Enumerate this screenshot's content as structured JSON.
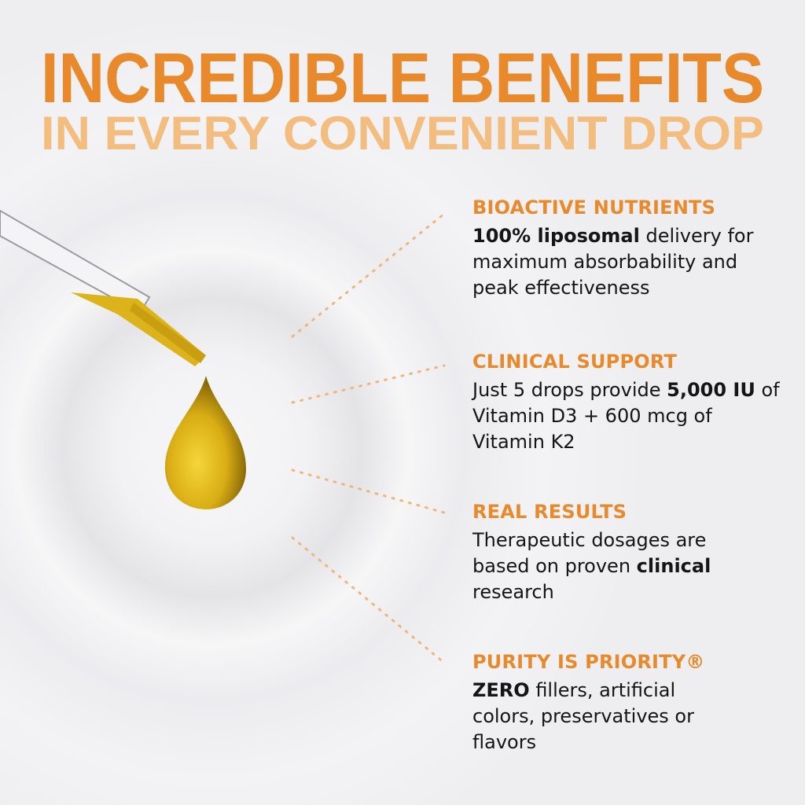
{
  "headline": {
    "line1": "INCREDIBLE BENEFITS",
    "line2": "IN EVERY CONVENIENT DROP"
  },
  "colors": {
    "accent": "#e8892c",
    "accent_light": "#f4bd80",
    "text": "#151515",
    "oil": "#e2b71c"
  },
  "benefits": [
    {
      "title": "BIOACTIVE NUTRIENTS",
      "bold": "100% liposomal",
      "rest": " delivery for maximum absorbability and peak effectiveness"
    },
    {
      "title": "CLINICAL SUPPORT",
      "pre": "Just 5 drops provide ",
      "bold": "5,000 IU",
      "rest": " of Vitamin D3 + 600 mcg of Vitamin K2"
    },
    {
      "title": "REAL RESULTS",
      "pre": "Therapeutic dosages are based on proven ",
      "bold": "clinical",
      "rest": " research"
    },
    {
      "title": "PURITY IS PRIORITY®",
      "bold": "ZERO",
      "rest": " fillers, artificial colors, preservatives or flavors"
    }
  ]
}
